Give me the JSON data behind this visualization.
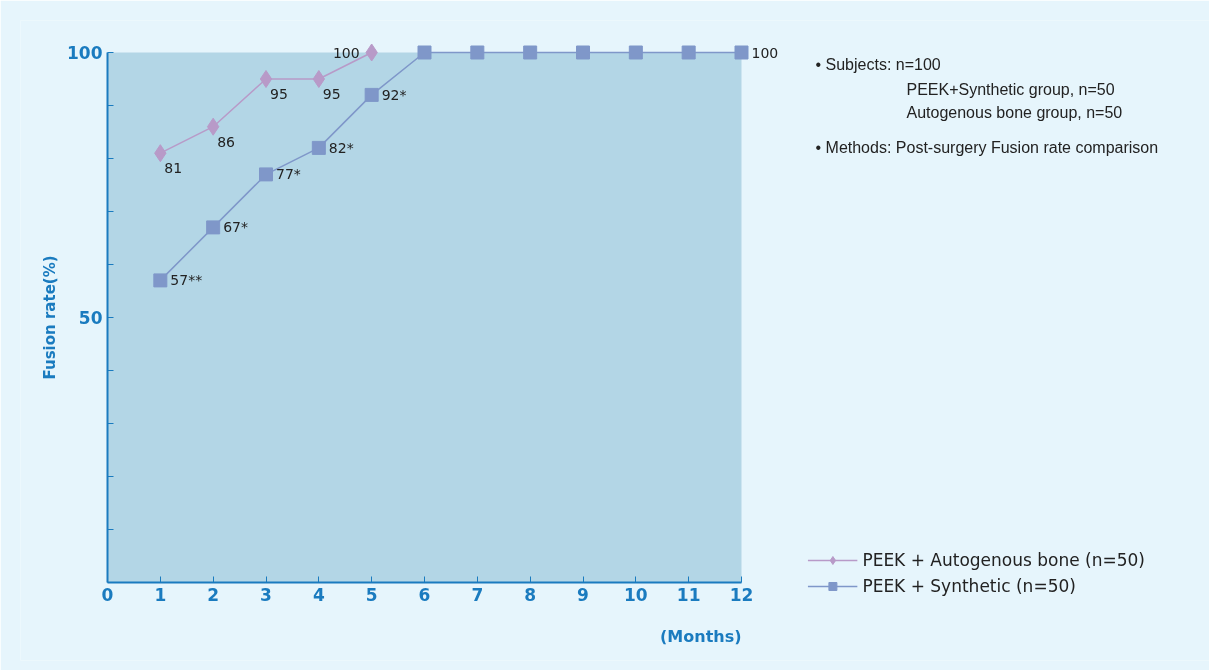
{
  "chart_data": {
    "type": "line",
    "x": [
      1,
      2,
      3,
      4,
      5,
      6,
      7,
      8,
      9,
      10,
      11,
      12
    ],
    "xlabel": "(Months)",
    "ylabel": "Fusion rate(%)",
    "xlim": [
      0,
      12
    ],
    "xticks": [
      0,
      1,
      2,
      3,
      4,
      5,
      6,
      7,
      8,
      9,
      10,
      11,
      12
    ],
    "ylim": [
      0,
      100
    ],
    "yticks": [
      {
        "value": 10,
        "label": null
      },
      {
        "value": 20,
        "label": null
      },
      {
        "value": 30,
        "label": null
      },
      {
        "value": 40,
        "label": null
      },
      50,
      {
        "value": 60,
        "label": null
      },
      {
        "value": 70,
        "label": null
      },
      {
        "value": 80,
        "label": null
      },
      {
        "value": 90,
        "label": null
      },
      100
    ],
    "grid": false,
    "legend": "bottom right",
    "line_style": "solid",
    "series": [
      {
        "name": "PEEK + Autogenous bone (n=50)",
        "color": "#b89ac8",
        "marker": "diamond",
        "values": [
          81,
          86,
          95,
          95,
          100,
          null,
          null,
          null,
          null,
          null,
          null,
          null
        ],
        "value_labels": [
          "81",
          "86",
          "95",
          "95",
          "100",
          null,
          null,
          null,
          null,
          null,
          null,
          null
        ]
      },
      {
        "name": "PEEK + Synthetic (n=50)",
        "color": "#7f97c9",
        "marker": "square",
        "values": [
          57,
          67,
          77,
          82,
          92,
          100,
          100,
          100,
          100,
          100,
          100,
          100
        ],
        "value_labels": [
          "57**",
          "67*",
          "77*",
          "82*",
          "92*",
          null,
          null,
          null,
          null,
          null,
          null,
          "100"
        ]
      }
    ],
    "annotations": [
      "• Subjects: n=100",
      "PEEK+Synthetic group, n=50",
      "Autogenous bone group, n=50",
      "• Methods: Post-surgery Fusion rate comparison"
    ]
  }
}
